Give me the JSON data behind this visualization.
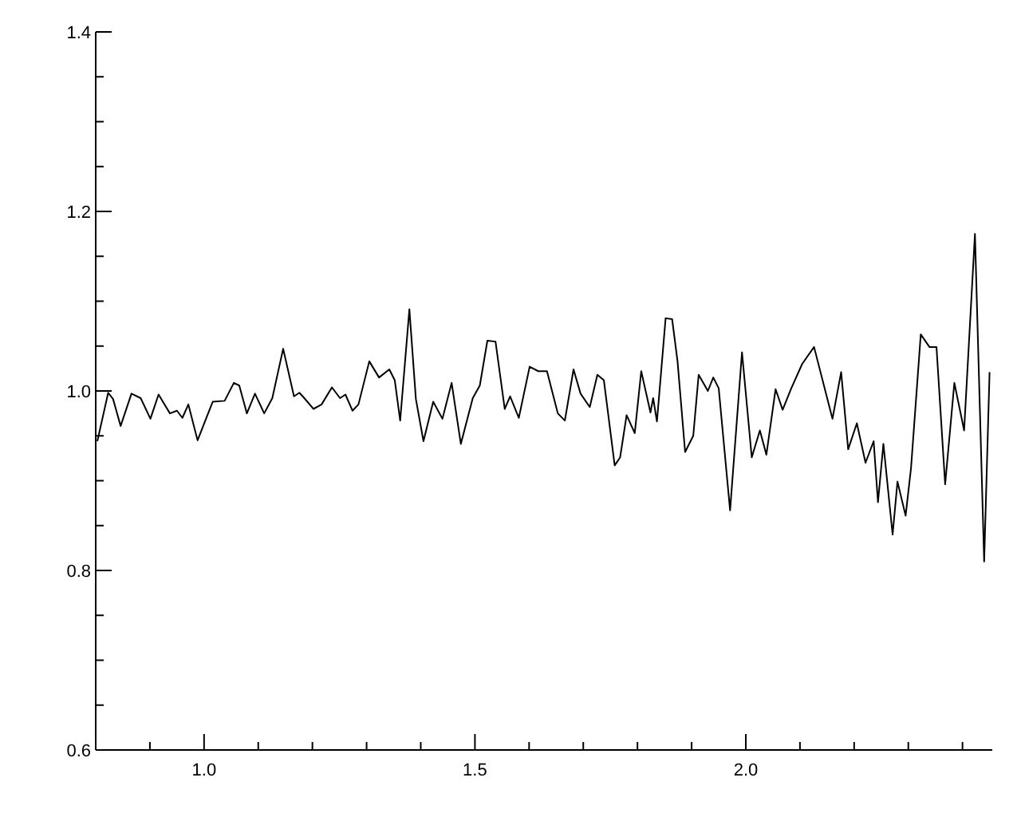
{
  "chart_data": {
    "type": "line",
    "xlim": [
      0.8,
      2.455
    ],
    "xticks": [
      {
        "value": 0.9,
        "label": null
      },
      {
        "value": 1,
        "label": "1.0"
      },
      {
        "value": 1.1,
        "label": null
      },
      {
        "value": 1.2,
        "label": null
      },
      {
        "value": 1.3,
        "label": null
      },
      {
        "value": 1.4,
        "label": null
      },
      1.5,
      {
        "value": 1.6,
        "label": null
      },
      {
        "value": 1.7,
        "label": null
      },
      {
        "value": 1.8,
        "label": null
      },
      {
        "value": 1.9,
        "label": null
      },
      {
        "value": 2,
        "label": "2.0"
      },
      {
        "value": 2.1,
        "label": null
      },
      {
        "value": 2.2,
        "label": null
      },
      {
        "value": 2.3,
        "label": null
      },
      {
        "value": 2.4,
        "label": null
      }
    ],
    "ylim": [
      0.6,
      1.4
    ],
    "yticks": [
      0.6,
      {
        "value": 0.65,
        "label": null
      },
      {
        "value": 0.7,
        "label": null
      },
      {
        "value": 0.75,
        "label": null
      },
      0.8,
      {
        "value": 0.85,
        "label": null
      },
      {
        "value": 0.9,
        "label": null
      },
      {
        "value": 0.95,
        "label": null
      },
      {
        "value": 1,
        "label": "1.0"
      },
      {
        "value": 1.05,
        "label": null
      },
      {
        "value": 1.1,
        "label": null
      },
      {
        "value": 1.15,
        "label": null
      },
      1.2,
      {
        "value": 1.25,
        "label": null
      },
      {
        "value": 1.3,
        "label": null
      },
      {
        "value": 1.35,
        "label": null
      },
      1.4
    ],
    "series": [
      {
        "color": "#000000",
        "x": [
          0.803,
          0.823,
          0.832,
          0.846,
          0.866,
          0.883,
          0.901,
          0.916,
          0.937,
          0.95,
          0.96,
          0.971,
          0.988,
          1.016,
          1.038,
          1.055,
          1.065,
          1.079,
          1.094,
          1.111,
          1.126,
          1.146,
          1.166,
          1.176,
          1.185,
          1.202,
          1.217,
          1.236,
          1.251,
          1.261,
          1.274,
          1.285,
          1.305,
          1.323,
          1.342,
          1.352,
          1.362,
          1.379,
          1.391,
          1.405,
          1.423,
          1.44,
          1.457,
          1.474,
          1.496,
          1.509,
          1.523,
          1.538,
          1.555,
          1.565,
          1.581,
          1.601,
          1.617,
          1.633,
          1.653,
          1.666,
          1.682,
          1.695,
          1.712,
          1.726,
          1.738,
          1.758,
          1.768,
          1.78,
          1.795,
          1.807,
          1.824,
          1.829,
          1.836,
          1.852,
          1.864,
          1.874,
          1.888,
          1.903,
          1.913,
          1.93,
          1.94,
          1.95,
          1.971,
          1.993,
          2.011,
          2.026,
          2.038,
          2.055,
          2.068,
          2.084,
          2.104,
          2.126,
          2.16,
          2.176,
          2.189,
          2.205,
          2.221,
          2.236,
          2.244,
          2.254,
          2.271,
          2.28,
          2.295,
          2.305,
          2.323,
          2.339,
          2.352,
          2.368,
          2.385,
          2.403,
          2.423,
          2.44,
          2.45
        ],
        "values": [
          0.944,
          0.998,
          0.991,
          0.961,
          0.997,
          0.992,
          0.969,
          0.996,
          0.975,
          0.978,
          0.97,
          0.985,
          0.945,
          0.988,
          0.989,
          1.009,
          1.006,
          0.975,
          0.997,
          0.975,
          0.992,
          1.047,
          0.994,
          0.998,
          0.992,
          0.98,
          0.985,
          1.004,
          0.992,
          0.996,
          0.978,
          0.985,
          1.033,
          1.015,
          1.024,
          1.012,
          0.967,
          1.091,
          0.991,
          0.944,
          0.988,
          0.969,
          1.009,
          0.941,
          0.992,
          1.006,
          1.056,
          1.055,
          0.98,
          0.994,
          0.97,
          1.027,
          1.022,
          1.022,
          0.975,
          0.967,
          1.024,
          0.997,
          0.982,
          1.018,
          1.012,
          0.917,
          0.926,
          0.973,
          0.953,
          1.022,
          0.976,
          0.992,
          0.966,
          1.081,
          1.08,
          1.033,
          0.932,
          0.95,
          1.018,
          1.0,
          1.015,
          1.003,
          0.867,
          1.043,
          0.926,
          0.956,
          0.929,
          1.002,
          0.979,
          1.003,
          1.03,
          1.049,
          0.969,
          1.021,
          0.935,
          0.964,
          0.92,
          0.944,
          0.876,
          0.941,
          0.84,
          0.899,
          0.861,
          0.914,
          1.063,
          1.049,
          1.049,
          0.896,
          1.009,
          0.956,
          1.175,
          0.81,
          1.021
        ]
      }
    ]
  }
}
